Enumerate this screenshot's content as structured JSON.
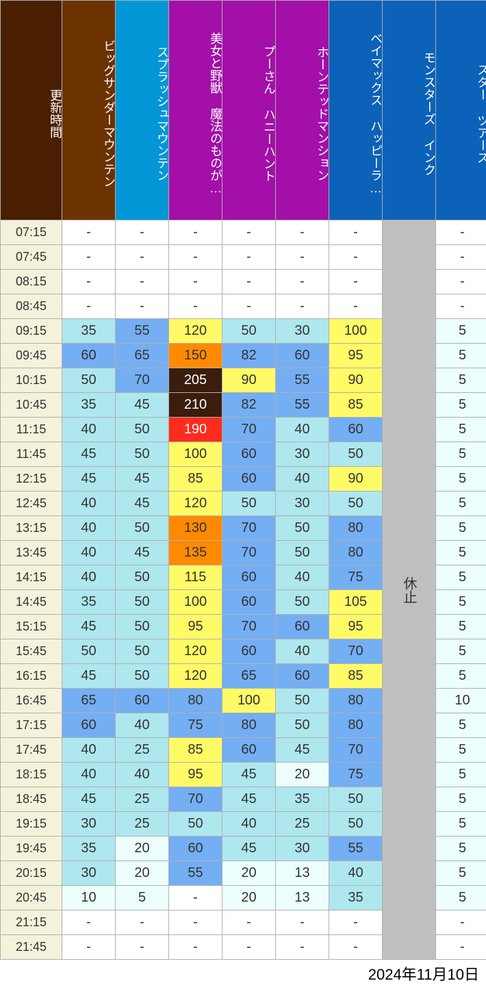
{
  "date_label": "2024年11月10日",
  "time_header_label": "更新時間",
  "time_header_bg": "#4a1e00",
  "time_cell_bg": "#f4f2da",
  "time_cell_color": "#333333",
  "closed_label": "休止",
  "closed_bg": "#bfbfbf",
  "closed_color": "#333333",
  "value_font_color": "#222222",
  "palette": {
    "none": {
      "bg": "#ffffff",
      "fg": "#333333"
    },
    "c005": {
      "bg": "#ecfffd",
      "fg": "#333333"
    },
    "c020": {
      "bg": "#ecfffd",
      "fg": "#333333"
    },
    "c040": {
      "bg": "#aee7ee",
      "fg": "#333333"
    },
    "c060": {
      "bg": "#74aef3",
      "fg": "#333333"
    },
    "c090": {
      "bg": "#fffb66",
      "fg": "#333333"
    },
    "c130": {
      "bg": "#ff8a00",
      "fg": "#333333"
    },
    "c190": {
      "bg": "#ff2b1c",
      "fg": "#ffffff"
    },
    "c200": {
      "bg": "#3a1d0d",
      "fg": "#ffffff"
    }
  },
  "rides": [
    {
      "key": "big_thunder",
      "label": "ビッグサンダーマウンテン",
      "header_bg": "#6b3300"
    },
    {
      "key": "splash",
      "label": "スプラッシュマウンテン",
      "header_bg": "#0296d6"
    },
    {
      "key": "beauty",
      "label": "美女と野獣 魔法のものが…",
      "header_bg": "#a30fa8"
    },
    {
      "key": "pooh",
      "label": "プーさん ハニーハント",
      "header_bg": "#a30fa8"
    },
    {
      "key": "haunted",
      "label": "ホーンテッドマンション",
      "header_bg": "#a30fa8"
    },
    {
      "key": "baymax",
      "label": "ベイマックス ハッピーラ…",
      "header_bg": "#0b62b8"
    },
    {
      "key": "monsters",
      "label": "モンスターズ インク",
      "header_bg": "#0b62b8",
      "closed": true
    },
    {
      "key": "star_tours",
      "label": "スター ツアーズ",
      "header_bg": "#0b62b8"
    }
  ],
  "times": [
    "07:15",
    "07:45",
    "08:15",
    "08:45",
    "09:15",
    "09:45",
    "10:15",
    "10:45",
    "11:15",
    "11:45",
    "12:15",
    "12:45",
    "13:15",
    "13:45",
    "14:15",
    "14:45",
    "15:15",
    "15:45",
    "16:15",
    "16:45",
    "17:15",
    "17:45",
    "18:15",
    "18:45",
    "19:15",
    "19:45",
    "20:15",
    "20:45",
    "21:15",
    "21:45"
  ],
  "values": {
    "big_thunder": [
      null,
      null,
      null,
      null,
      35,
      60,
      50,
      35,
      40,
      45,
      45,
      40,
      40,
      40,
      40,
      35,
      45,
      50,
      45,
      65,
      60,
      40,
      40,
      45,
      30,
      35,
      30,
      10,
      null,
      null
    ],
    "splash": [
      null,
      null,
      null,
      null,
      55,
      65,
      70,
      45,
      50,
      50,
      45,
      45,
      50,
      45,
      50,
      50,
      50,
      50,
      50,
      60,
      40,
      25,
      40,
      25,
      25,
      20,
      20,
      5,
      null,
      null
    ],
    "beauty": [
      null,
      null,
      null,
      null,
      120,
      150,
      205,
      210,
      190,
      100,
      85,
      120,
      130,
      135,
      115,
      100,
      95,
      120,
      120,
      80,
      75,
      85,
      95,
      70,
      50,
      60,
      55,
      null,
      null,
      null
    ],
    "pooh": [
      null,
      null,
      null,
      null,
      50,
      82,
      90,
      82,
      70,
      60,
      60,
      50,
      70,
      70,
      60,
      60,
      70,
      60,
      65,
      100,
      80,
      60,
      45,
      45,
      40,
      45,
      20,
      20,
      null,
      null
    ],
    "haunted": [
      null,
      null,
      null,
      null,
      30,
      60,
      55,
      55,
      40,
      30,
      40,
      30,
      50,
      50,
      40,
      50,
      60,
      40,
      60,
      50,
      50,
      45,
      20,
      35,
      25,
      30,
      13,
      13,
      null,
      null
    ],
    "baymax": [
      null,
      null,
      null,
      null,
      100,
      95,
      90,
      85,
      60,
      50,
      90,
      50,
      80,
      80,
      75,
      105,
      95,
      70,
      85,
      80,
      80,
      70,
      75,
      50,
      50,
      55,
      40,
      35,
      null,
      null
    ],
    "star_tours": [
      null,
      null,
      null,
      null,
      5,
      5,
      5,
      5,
      5,
      5,
      5,
      5,
      5,
      5,
      5,
      5,
      5,
      5,
      5,
      10,
      5,
      5,
      5,
      5,
      5,
      5,
      5,
      5,
      null,
      null
    ]
  },
  "col_widths": {
    "time": 90,
    "ride": 78
  },
  "header_font_size": 18,
  "cell_font_size": 20
}
